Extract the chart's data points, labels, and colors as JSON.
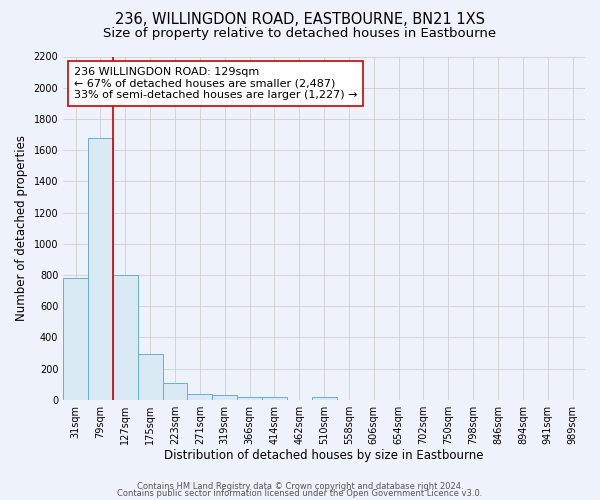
{
  "title": "236, WILLINGDON ROAD, EASTBOURNE, BN21 1XS",
  "subtitle": "Size of property relative to detached houses in Eastbourne",
  "xlabel": "Distribution of detached houses by size in Eastbourne",
  "ylabel": "Number of detached properties",
  "categories": [
    "31sqm",
    "79sqm",
    "127sqm",
    "175sqm",
    "223sqm",
    "271sqm",
    "319sqm",
    "366sqm",
    "414sqm",
    "462sqm",
    "510sqm",
    "558sqm",
    "606sqm",
    "654sqm",
    "702sqm",
    "750sqm",
    "798sqm",
    "846sqm",
    "894sqm",
    "941sqm",
    "989sqm"
  ],
  "values": [
    780,
    1680,
    800,
    295,
    110,
    35,
    30,
    20,
    20,
    0,
    20,
    0,
    0,
    0,
    0,
    0,
    0,
    0,
    0,
    0,
    0
  ],
  "bar_color": "#daeaf5",
  "bar_edge_color": "#6aadd5",
  "vline_x": 1.5,
  "vline_color": "#cc0000",
  "annotation_text": "236 WILLINGDON ROAD: 129sqm\n← 67% of detached houses are smaller (2,487)\n33% of semi-detached houses are larger (1,227) →",
  "annotation_box_color": "#ffffff",
  "annotation_box_edge": "#cc0000",
  "ylim": [
    0,
    2200
  ],
  "yticks": [
    0,
    200,
    400,
    600,
    800,
    1000,
    1200,
    1400,
    1600,
    1800,
    2000,
    2200
  ],
  "background_color": "#eef2fa",
  "footer_line1": "Contains HM Land Registry data © Crown copyright and database right 2024.",
  "footer_line2": "Contains public sector information licensed under the Open Government Licence v3.0.",
  "title_fontsize": 10.5,
  "subtitle_fontsize": 9.5,
  "axis_label_fontsize": 8.5,
  "tick_fontsize": 7,
  "annotation_fontsize": 8,
  "footer_fontsize": 6
}
